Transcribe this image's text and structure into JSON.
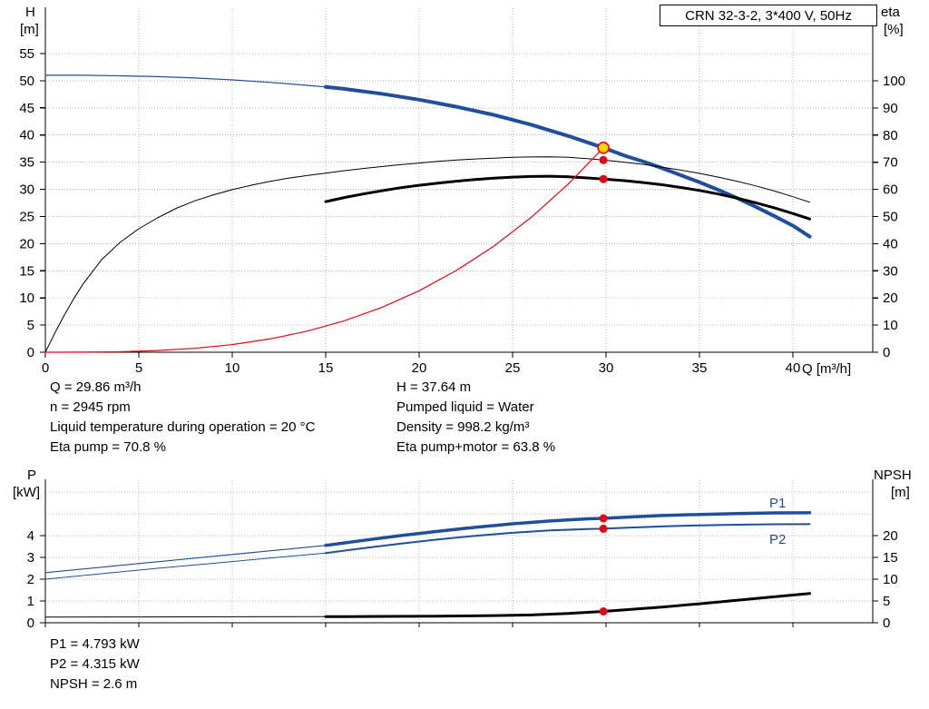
{
  "title_box": {
    "text": "CRN 32-3-2, 3*400 V, 50Hz"
  },
  "colors": {
    "curve_blue": "#1f4e9c",
    "curve_red": "#e30613",
    "curve_black": "#000000",
    "grid": "#b4b4b4",
    "axis": "#000000",
    "marker_yellow": "#ffd500"
  },
  "top_chart": {
    "y_left_title": [
      "H",
      "[m]"
    ],
    "y_right_title": [
      "eta",
      "[%]"
    ],
    "x_title": "Q [m³/h]",
    "y_left_ticks": [
      0,
      5,
      10,
      15,
      20,
      25,
      30,
      35,
      40,
      45,
      50,
      55
    ],
    "y_right_ticks": [
      0,
      10,
      20,
      30,
      40,
      50,
      60,
      70,
      80,
      90,
      100
    ],
    "x_ticks": [
      0,
      5,
      10,
      15,
      20,
      25,
      30,
      35,
      40
    ]
  },
  "bottom_chart": {
    "y_left_title": [
      "P",
      "[kW]"
    ],
    "y_right_title": [
      "NPSH",
      "[m]"
    ],
    "y_left_ticks": [
      0,
      1,
      2,
      3,
      4
    ],
    "y_right_ticks": [
      0,
      5,
      10,
      15,
      20
    ],
    "curve_labels": {
      "p1": "P1",
      "p2": "P2"
    }
  },
  "operating_info_top": {
    "left": [
      "Q = 29.86 m³/h",
      "n = 2945 rpm",
      "Liquid temperature during operation = 20 °C",
      "Eta pump = 70.8 %"
    ],
    "right": [
      "H = 37.64 m",
      "Pumped liquid = Water",
      "Density = 998.2 kg/m³",
      "Eta pump+motor = 63.8 %"
    ]
  },
  "operating_info_bottom": [
    "P1 = 4.793 kW",
    "P2 = 4.315 kW",
    "NPSH = 2.6 m"
  ],
  "chart_data": [
    {
      "type": "line",
      "title": "CRN 32-3-2, 3*400 V, 50Hz",
      "xlabel": "Q [m³/h]",
      "ylabel_left": "H [m]",
      "ylabel_right": "eta [%]",
      "xlim": [
        0,
        44.3
      ],
      "ylim_left": [
        0,
        55
      ],
      "ylim_right": [
        0,
        100
      ],
      "grid": true,
      "series": [
        {
          "name": "head-curve-low-flow",
          "axis": "H",
          "color": "#1f4e9c",
          "width": 1.2,
          "x": [
            0,
            2,
            4,
            6,
            8,
            10,
            12,
            14,
            15
          ],
          "y": [
            51,
            51,
            50.9,
            50.75,
            50.5,
            50.15,
            49.7,
            49.15,
            48.85
          ]
        },
        {
          "name": "head-curve",
          "axis": "H",
          "color": "#1f4e9c",
          "width": 4,
          "x": [
            15,
            16,
            18,
            20,
            22,
            24,
            26,
            28,
            29.86,
            31,
            32,
            33,
            34,
            35,
            36,
            37,
            38,
            39,
            40,
            40.9
          ],
          "y": [
            48.85,
            48.5,
            47.6,
            46.5,
            45.2,
            43.7,
            41.9,
            39.8,
            37.64,
            36.2,
            35.1,
            33.9,
            32.6,
            31.3,
            29.9,
            28.4,
            26.8,
            25.1,
            23.3,
            21.3
          ]
        },
        {
          "name": "eta-pump-curve",
          "axis": "eta",
          "color": "#000000",
          "width": 1,
          "x": [
            0,
            0.5,
            1,
            1.5,
            2,
            3,
            4,
            5,
            6,
            7,
            8,
            9,
            10,
            11,
            12,
            13,
            14,
            15,
            16,
            17,
            18,
            19,
            20,
            21,
            22,
            23,
            24,
            25,
            26,
            27,
            28,
            29,
            29.86,
            31,
            32,
            33,
            34,
            35,
            36,
            37,
            38,
            39,
            40,
            40.9
          ],
          "y": [
            0,
            7,
            13.5,
            19.5,
            25,
            34,
            40.5,
            45.5,
            49.5,
            53,
            55.8,
            58,
            59.9,
            61.5,
            62.9,
            64.1,
            65.1,
            66,
            66.9,
            67.7,
            68.4,
            69.1,
            69.7,
            70.3,
            70.8,
            71.2,
            71.5,
            71.8,
            71.95,
            72,
            71.8,
            71.3,
            70.8,
            70,
            69.2,
            68.2,
            67.1,
            65.9,
            64.5,
            63,
            61.3,
            59.4,
            57.3,
            55.3
          ]
        },
        {
          "name": "eta-pump-motor-curve",
          "axis": "eta",
          "color": "#000000",
          "width": 3,
          "x": [
            15,
            16,
            17,
            18,
            19,
            20,
            21,
            22,
            23,
            24,
            25,
            26,
            27,
            28,
            29,
            29.86,
            31,
            32,
            33,
            34,
            35,
            36,
            37,
            38,
            39,
            40,
            40.9
          ],
          "y": [
            55.5,
            57,
            58.3,
            59.5,
            60.6,
            61.5,
            62.3,
            63,
            63.6,
            64.1,
            64.5,
            64.75,
            64.85,
            64.6,
            64.2,
            63.8,
            63.2,
            62.5,
            61.7,
            60.7,
            59.6,
            58.3,
            56.8,
            55.1,
            53.2,
            51.1,
            49.1
          ]
        },
        {
          "name": "duty-system-curve",
          "axis": "H",
          "color": "#e30613",
          "width": 1.2,
          "x": [
            0,
            2,
            4,
            6,
            8,
            10,
            12,
            14,
            16,
            18,
            20,
            22,
            24,
            26,
            28,
            29.86
          ],
          "y": [
            0,
            0.01,
            0.09,
            0.31,
            0.72,
            1.41,
            2.44,
            3.88,
            5.79,
            8.25,
            11.31,
            15.06,
            19.55,
            24.85,
            31.04,
            37.64
          ]
        }
      ],
      "points": [
        {
          "name": "duty-point",
          "x": 29.86,
          "y": 37.64,
          "axis": "H",
          "r": 6,
          "fill": "#ffd500",
          "stroke": "#e30613"
        },
        {
          "name": "eta-pump-point",
          "x": 29.86,
          "y": 70.8,
          "axis": "eta",
          "r": 4.5,
          "fill": "#e30613"
        },
        {
          "name": "eta-pump-motor-point",
          "x": 29.86,
          "y": 63.8,
          "axis": "eta",
          "r": 4.5,
          "fill": "#e30613"
        }
      ]
    },
    {
      "type": "line",
      "title": "",
      "xlabel": "Q [m³/h]",
      "ylabel_left": "P [kW]",
      "ylabel_right": "NPSH [m]",
      "xlim": [
        0,
        44.3
      ],
      "ylim_left": [
        0,
        6.5
      ],
      "ylim_right": [
        0,
        32
      ],
      "grid": true,
      "series": [
        {
          "name": "p1-curve-low-flow",
          "axis": "P",
          "color": "#1f4e9c",
          "width": 1.2,
          "x": [
            0,
            3,
            6,
            9,
            12,
            15
          ],
          "y": [
            2.3,
            2.55,
            2.8,
            3.05,
            3.3,
            3.55
          ]
        },
        {
          "name": "p1-curve",
          "axis": "P",
          "color": "#1f4e9c",
          "width": 3.5,
          "x": [
            15,
            17,
            19,
            21,
            23,
            25,
            27,
            29,
            29.86,
            31,
            33,
            35,
            37,
            39,
            40.9
          ],
          "y": [
            3.55,
            3.78,
            4.0,
            4.2,
            4.38,
            4.54,
            4.67,
            4.77,
            4.793,
            4.84,
            4.92,
            4.97,
            5.01,
            5.04,
            5.05
          ]
        },
        {
          "name": "p2-curve-low-flow",
          "axis": "P",
          "color": "#1f4e9c",
          "width": 1,
          "x": [
            0,
            3,
            6,
            9,
            12,
            15
          ],
          "y": [
            2.0,
            2.25,
            2.5,
            2.73,
            2.97,
            3.2
          ]
        },
        {
          "name": "p2-curve",
          "axis": "P",
          "color": "#1f4e9c",
          "width": 2,
          "x": [
            15,
            17,
            19,
            21,
            23,
            25,
            27,
            29,
            29.86,
            31,
            33,
            35,
            37,
            39,
            40.9
          ],
          "y": [
            3.2,
            3.42,
            3.63,
            3.82,
            3.99,
            4.13,
            4.24,
            4.3,
            4.315,
            4.36,
            4.42,
            4.47,
            4.5,
            4.52,
            4.53
          ]
        },
        {
          "name": "npsh-curve-low-flow",
          "axis": "NPSH",
          "color": "#000000",
          "width": 1,
          "x": [
            0,
            5,
            10,
            15
          ],
          "y": [
            1.3,
            1.33,
            1.37,
            1.4
          ]
        },
        {
          "name": "npsh-curve",
          "axis": "NPSH",
          "color": "#000000",
          "width": 3,
          "x": [
            15,
            18,
            21,
            24,
            26,
            28,
            29.86,
            31,
            33,
            35,
            37,
            39,
            40.9
          ],
          "y": [
            1.4,
            1.45,
            1.52,
            1.65,
            1.8,
            2.15,
            2.6,
            2.95,
            3.6,
            4.35,
            5.15,
            5.95,
            6.7
          ]
        }
      ],
      "points": [
        {
          "name": "p1-point",
          "x": 29.86,
          "y": 4.793,
          "axis": "P",
          "r": 4.5,
          "fill": "#e30613"
        },
        {
          "name": "p2-point",
          "x": 29.86,
          "y": 4.315,
          "axis": "P",
          "r": 4.5,
          "fill": "#e30613"
        },
        {
          "name": "npsh-point",
          "x": 29.86,
          "y": 2.6,
          "axis": "NPSH",
          "r": 4.5,
          "fill": "#e30613"
        }
      ]
    }
  ]
}
